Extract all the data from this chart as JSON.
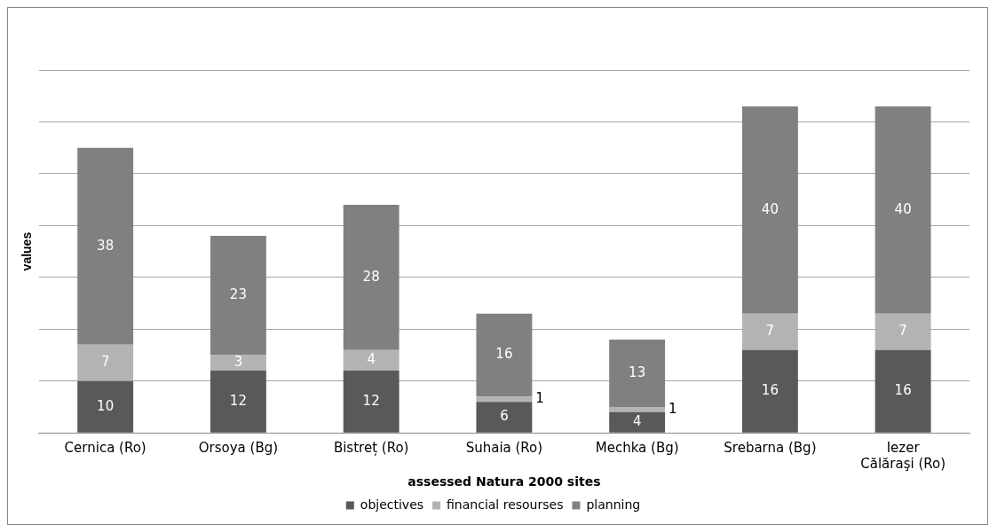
{
  "chart_data": {
    "type": "bar",
    "stacked": true,
    "xlabel": "assessed Natura 2000 sites",
    "ylabel": "values",
    "categories": [
      "Cernica (Ro)",
      "Orsoya (Bg)",
      "Bistreț (Ro)",
      "Suhaia (Ro)",
      "Mechka (Bg)",
      "Srebarna (Bg)",
      "Iezer Călăraşi (Ro)"
    ],
    "series": [
      {
        "name": "objectives",
        "color": "#595959",
        "values": [
          10,
          12,
          12,
          6,
          4,
          16,
          16
        ]
      },
      {
        "name": "financial resourses",
        "color": "#b3b3b3",
        "values": [
          7,
          3,
          4,
          1,
          1,
          7,
          7
        ]
      },
      {
        "name": "planning",
        "color": "#808080",
        "values": [
          38,
          23,
          28,
          16,
          13,
          40,
          40
        ]
      }
    ],
    "tick_labels": "x",
    "grid": "y",
    "legend": "bottom",
    "data_labels": true
  }
}
